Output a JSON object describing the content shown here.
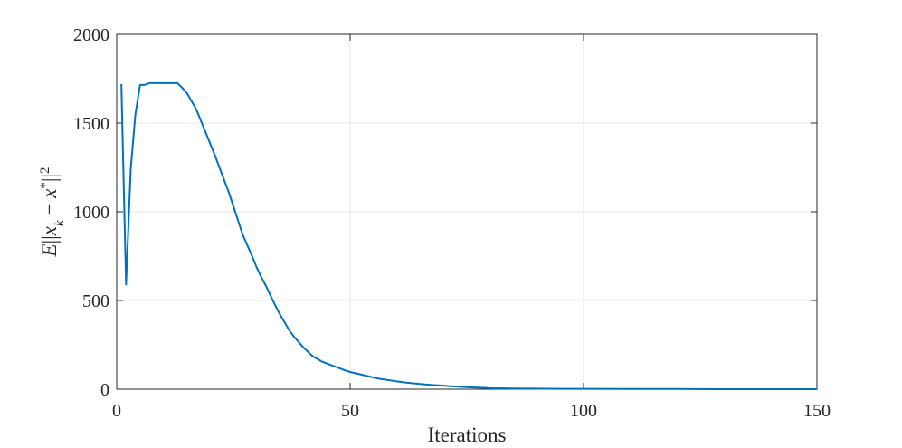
{
  "chart_data": {
    "type": "line",
    "title": "",
    "xlabel": "Iterations",
    "ylabel": {
      "parts": [
        {
          "text": "E",
          "italic": true
        },
        {
          "text": "||",
          "italic": false
        },
        {
          "text": "x",
          "italic": true
        },
        {
          "text": "k",
          "italic": true,
          "sub": true
        },
        {
          "text": " − ",
          "italic": false
        },
        {
          "text": "x",
          "italic": true
        },
        {
          "text": "*",
          "italic": false,
          "sup": true
        },
        {
          "text": "||",
          "italic": false
        },
        {
          "text": "2",
          "italic": false,
          "sup": true
        }
      ]
    },
    "xlim": [
      0,
      150
    ],
    "ylim": [
      0,
      2000
    ],
    "xticks": [
      0,
      50,
      100,
      150
    ],
    "yticks": [
      0,
      500,
      1000,
      1500,
      2000
    ],
    "grid": true,
    "line_color": "#0072BD",
    "series": [
      {
        "x": [
          1,
          2,
          3,
          4,
          5,
          6,
          7,
          8,
          9,
          10,
          11,
          12,
          13,
          14,
          15,
          16,
          17,
          18,
          19,
          20,
          21,
          22,
          23,
          24,
          25,
          26,
          27,
          28,
          29,
          30,
          31,
          32,
          33,
          34,
          35,
          36,
          37,
          38,
          39,
          40,
          41,
          42,
          43,
          44,
          45,
          46,
          47,
          48,
          49,
          50,
          52,
          54,
          56,
          58,
          60,
          62,
          64,
          66,
          68,
          70,
          72,
          74,
          76,
          78,
          80,
          85,
          90,
          95,
          100,
          110,
          120,
          130,
          140,
          150
        ],
        "values": [
          1720,
          590,
          1240,
          1550,
          1715,
          1715,
          1725,
          1725,
          1725,
          1725,
          1725,
          1725,
          1725,
          1700,
          1670,
          1625,
          1580,
          1515,
          1450,
          1385,
          1320,
          1250,
          1180,
          1110,
          1030,
          950,
          870,
          810,
          750,
          685,
          630,
          580,
          525,
          470,
          420,
          375,
          330,
          295,
          265,
          235,
          210,
          185,
          170,
          155,
          145,
          135,
          125,
          115,
          105,
          97,
          85,
          72,
          60,
          52,
          44,
          37,
          32,
          27,
          23,
          20,
          16,
          13,
          10,
          8,
          6,
          4,
          3,
          2,
          2,
          1,
          1,
          0,
          0,
          0
        ]
      }
    ]
  }
}
